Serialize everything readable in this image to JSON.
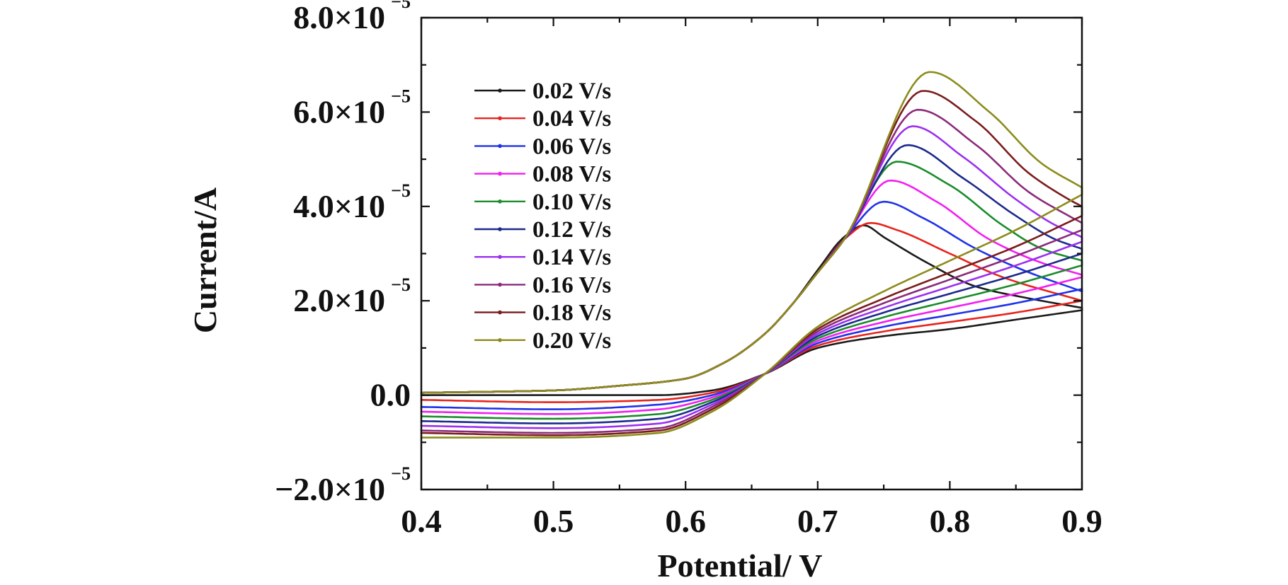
{
  "chart_data": {
    "type": "line",
    "xlabel": "Potential/ V",
    "ylabel": "Current/A",
    "xlim": [
      0.4,
      0.9
    ],
    "ylim": [
      -2e-05,
      8e-05
    ],
    "x_ticks": [
      {
        "value": 0.4,
        "label": "0.4"
      },
      {
        "value": 0.5,
        "label": "0.5"
      },
      {
        "value": 0.6,
        "label": "0.6"
      },
      {
        "value": 0.7,
        "label": "0.7"
      },
      {
        "value": 0.8,
        "label": "0.8"
      },
      {
        "value": 0.9,
        "label": "0.9"
      }
    ],
    "y_ticks": [
      {
        "value": -2e-05,
        "mant": "−2.0×10",
        "exp": "−5"
      },
      {
        "value": 0.0,
        "mant": "0.0",
        "exp": ""
      },
      {
        "value": 2e-05,
        "mant": "2.0×10",
        "exp": "−5"
      },
      {
        "value": 4e-05,
        "mant": "4.0×10",
        "exp": "−5"
      },
      {
        "value": 6e-05,
        "mant": "6.0×10",
        "exp": "−5"
      },
      {
        "value": 8e-05,
        "mant": "8.0×10",
        "exp": "−5"
      }
    ],
    "legend_position": "top-left",
    "grid": false,
    "series": [
      {
        "name": "0.02 V/s",
        "color": "#1a1a1a",
        "forward_x": [
          0.4,
          0.5,
          0.55,
          0.6,
          0.63,
          0.66,
          0.68,
          0.7,
          0.72,
          0.735,
          0.75,
          0.78,
          0.82,
          0.86,
          0.9
        ],
        "forward_y": [
          5e-07,
          1e-06,
          2e-06,
          3.5e-06,
          7e-06,
          1.3e-05,
          1.9e-05,
          2.65e-05,
          3.35e-05,
          3.6e-05,
          3.35e-05,
          2.85e-05,
          2.3e-05,
          2.05e-05,
          1.85e-05
        ],
        "reverse_x": [
          0.9,
          0.85,
          0.8,
          0.75,
          0.7,
          0.66,
          0.62,
          0.58,
          0.5,
          0.4
        ],
        "reverse_y": [
          1.8e-05,
          1.6e-05,
          1.4e-05,
          1.25e-05,
          1e-05,
          4.5e-06,
          1e-06,
          0.0,
          0.0,
          0.0
        ]
      },
      {
        "name": "0.04 V/s",
        "color": "#e8231c",
        "forward_x": [
          0.4,
          0.5,
          0.55,
          0.6,
          0.63,
          0.66,
          0.68,
          0.7,
          0.72,
          0.74,
          0.76,
          0.8,
          0.84,
          0.9
        ],
        "forward_y": [
          5e-07,
          1e-06,
          2e-06,
          3.5e-06,
          7e-06,
          1.3e-05,
          1.9e-05,
          2.6e-05,
          3.3e-05,
          3.65e-05,
          3.5e-05,
          3e-05,
          2.5e-05,
          2e-05
        ],
        "reverse_x": [
          0.9,
          0.85,
          0.8,
          0.75,
          0.7,
          0.66,
          0.62,
          0.58,
          0.5,
          0.4
        ],
        "reverse_y": [
          2e-05,
          1.75e-05,
          1.55e-05,
          1.35e-05,
          1.05e-05,
          4.5e-06,
          5e-07,
          -1e-06,
          -1.5e-06,
          -1e-06
        ]
      },
      {
        "name": "0.06 V/s",
        "color": "#1f32e8",
        "forward_x": [
          0.4,
          0.5,
          0.55,
          0.6,
          0.63,
          0.66,
          0.68,
          0.7,
          0.72,
          0.75,
          0.78,
          0.82,
          0.86,
          0.9
        ],
        "forward_y": [
          5e-07,
          1e-06,
          2e-06,
          3.5e-06,
          7e-06,
          1.3e-05,
          1.9e-05,
          2.6e-05,
          3.3e-05,
          4.1e-05,
          3.75e-05,
          3.1e-05,
          2.6e-05,
          2.2e-05
        ],
        "reverse_x": [
          0.9,
          0.85,
          0.8,
          0.75,
          0.7,
          0.66,
          0.62,
          0.58,
          0.5,
          0.4
        ],
        "reverse_y": [
          2.25e-05,
          1.95e-05,
          1.7e-05,
          1.45e-05,
          1.1e-05,
          4.5e-06,
          0.0,
          -2e-06,
          -3e-06,
          -2.5e-06
        ]
      },
      {
        "name": "0.08 V/s",
        "color": "#f21ef2",
        "forward_x": [
          0.4,
          0.5,
          0.55,
          0.6,
          0.63,
          0.66,
          0.68,
          0.7,
          0.72,
          0.755,
          0.79,
          0.83,
          0.87,
          0.9
        ],
        "forward_y": [
          5e-07,
          1e-06,
          2e-06,
          3.5e-06,
          7e-06,
          1.3e-05,
          1.9e-05,
          2.6e-05,
          3.3e-05,
          4.55e-05,
          4.1e-05,
          3.3e-05,
          2.8e-05,
          2.55e-05
        ],
        "reverse_x": [
          0.9,
          0.85,
          0.8,
          0.75,
          0.7,
          0.66,
          0.62,
          0.58,
          0.5,
          0.4
        ],
        "reverse_y": [
          2.5e-05,
          2.15e-05,
          1.85e-05,
          1.55e-05,
          1.15e-05,
          4.5e-06,
          -5e-07,
          -3e-06,
          -4e-06,
          -3.5e-06
        ]
      },
      {
        "name": "0.10 V/s",
        "color": "#1a8c2a",
        "forward_x": [
          0.4,
          0.5,
          0.55,
          0.6,
          0.63,
          0.66,
          0.68,
          0.7,
          0.72,
          0.76,
          0.8,
          0.84,
          0.87,
          0.9
        ],
        "forward_y": [
          5e-07,
          1e-06,
          2e-06,
          3.5e-06,
          7e-06,
          1.3e-05,
          1.9e-05,
          2.6e-05,
          3.3e-05,
          4.95e-05,
          4.45e-05,
          3.6e-05,
          3.1e-05,
          2.85e-05
        ],
        "reverse_x": [
          0.9,
          0.85,
          0.8,
          0.75,
          0.7,
          0.66,
          0.62,
          0.58,
          0.5,
          0.4
        ],
        "reverse_y": [
          2.75e-05,
          2.35e-05,
          2e-05,
          1.65e-05,
          1.2e-05,
          4.5e-06,
          -1e-06,
          -4e-06,
          -5e-06,
          -4.5e-06
        ]
      },
      {
        "name": "0.12 V/s",
        "color": "#1c2a8c",
        "forward_x": [
          0.4,
          0.5,
          0.55,
          0.6,
          0.63,
          0.66,
          0.68,
          0.7,
          0.72,
          0.768,
          0.81,
          0.85,
          0.88,
          0.9
        ],
        "forward_y": [
          5e-07,
          1e-06,
          2e-06,
          3.5e-06,
          7e-06,
          1.3e-05,
          1.9e-05,
          2.6e-05,
          3.3e-05,
          5.3e-05,
          4.6e-05,
          3.8e-05,
          3.3e-05,
          3.1e-05
        ],
        "reverse_x": [
          0.9,
          0.85,
          0.8,
          0.75,
          0.7,
          0.66,
          0.62,
          0.58,
          0.5,
          0.4
        ],
        "reverse_y": [
          3e-05,
          2.55e-05,
          2.15e-05,
          1.75e-05,
          1.25e-05,
          4.5e-06,
          -1.5e-06,
          -5e-06,
          -6e-06,
          -5.5e-06
        ]
      },
      {
        "name": "0.14 V/s",
        "color": "#9b30f0",
        "forward_x": [
          0.4,
          0.5,
          0.55,
          0.6,
          0.63,
          0.66,
          0.68,
          0.7,
          0.72,
          0.772,
          0.81,
          0.85,
          0.88,
          0.9
        ],
        "forward_y": [
          5e-07,
          1e-06,
          2e-06,
          3.5e-06,
          7e-06,
          1.3e-05,
          1.9e-05,
          2.6e-05,
          3.3e-05,
          5.7e-05,
          5.05e-05,
          4.15e-05,
          3.6e-05,
          3.35e-05
        ],
        "reverse_x": [
          0.9,
          0.85,
          0.8,
          0.75,
          0.7,
          0.66,
          0.62,
          0.58,
          0.5,
          0.4
        ],
        "reverse_y": [
          3.25e-05,
          2.75e-05,
          2.3e-05,
          1.85e-05,
          1.3e-05,
          4.5e-06,
          -2e-06,
          -6e-06,
          -7e-06,
          -6.5e-06
        ]
      },
      {
        "name": "0.16 V/s",
        "color": "#8c2a7a",
        "forward_x": [
          0.4,
          0.5,
          0.55,
          0.6,
          0.63,
          0.66,
          0.68,
          0.7,
          0.72,
          0.776,
          0.82,
          0.86,
          0.89,
          0.9
        ],
        "forward_y": [
          5e-07,
          1e-06,
          2e-06,
          3.5e-06,
          7e-06,
          1.3e-05,
          1.9e-05,
          2.6e-05,
          3.3e-05,
          6.05e-05,
          5.3e-05,
          4.3e-05,
          3.8e-05,
          3.65e-05
        ],
        "reverse_x": [
          0.9,
          0.85,
          0.8,
          0.75,
          0.7,
          0.66,
          0.62,
          0.58,
          0.5,
          0.4
        ],
        "reverse_y": [
          3.5e-05,
          2.95e-05,
          2.45e-05,
          1.95e-05,
          1.35e-05,
          4.5e-06,
          -2.5e-06,
          -7e-06,
          -8e-06,
          -7.5e-06
        ]
      },
      {
        "name": "0.18 V/s",
        "color": "#7a1c1c",
        "forward_x": [
          0.4,
          0.5,
          0.55,
          0.6,
          0.63,
          0.66,
          0.68,
          0.7,
          0.72,
          0.78,
          0.82,
          0.86,
          0.89,
          0.9
        ],
        "forward_y": [
          5e-07,
          1e-06,
          2e-06,
          3.5e-06,
          7e-06,
          1.3e-05,
          1.9e-05,
          2.6e-05,
          3.3e-05,
          6.45e-05,
          5.8e-05,
          4.7e-05,
          4.15e-05,
          4e-05
        ],
        "reverse_x": [
          0.9,
          0.85,
          0.8,
          0.75,
          0.7,
          0.66,
          0.62,
          0.58,
          0.5,
          0.4
        ],
        "reverse_y": [
          3.8e-05,
          3.15e-05,
          2.6e-05,
          2.05e-05,
          1.4e-05,
          4.5e-06,
          -3e-06,
          -7.5e-06,
          -8.5e-06,
          -8e-06
        ]
      },
      {
        "name": "0.20 V/s",
        "color": "#8c8c1c",
        "forward_x": [
          0.4,
          0.5,
          0.55,
          0.6,
          0.63,
          0.66,
          0.68,
          0.7,
          0.72,
          0.785,
          0.83,
          0.87,
          0.9
        ],
        "forward_y": [
          5e-07,
          1e-06,
          2e-06,
          3.5e-06,
          7e-06,
          1.3e-05,
          1.9e-05,
          2.6e-05,
          3.3e-05,
          6.85e-05,
          6e-05,
          4.9e-05,
          4.4e-05
        ],
        "reverse_x": [
          0.9,
          0.85,
          0.8,
          0.75,
          0.7,
          0.66,
          0.62,
          0.58,
          0.5,
          0.4
        ],
        "reverse_y": [
          4.25e-05,
          3.5e-05,
          2.85e-05,
          2.2e-05,
          1.45e-05,
          4.5e-06,
          -3.5e-06,
          -8e-06,
          -9e-06,
          -9e-06
        ]
      }
    ]
  }
}
